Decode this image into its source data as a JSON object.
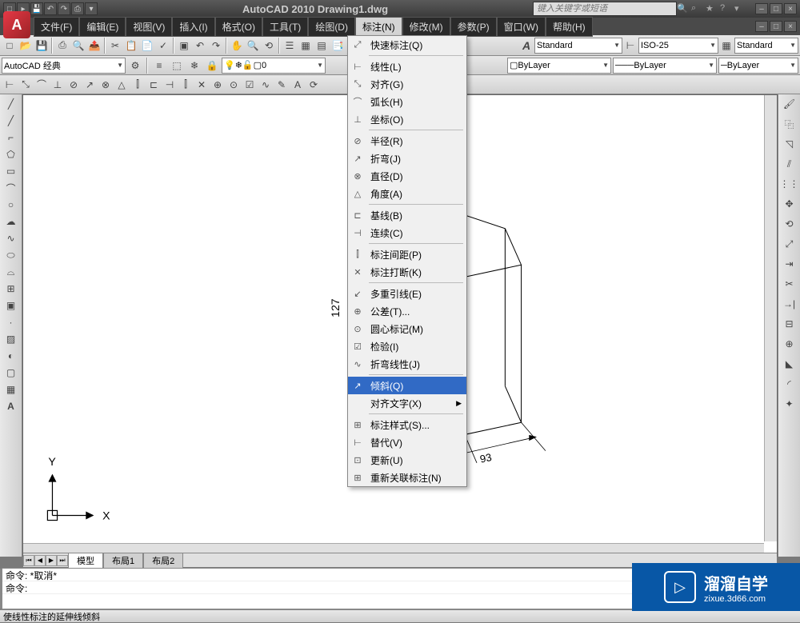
{
  "title": "AutoCAD 2010  Drawing1.dwg",
  "search_placeholder": "键入关键字或短语",
  "menus": [
    "文件(F)",
    "编辑(E)",
    "视图(V)",
    "插入(I)",
    "格式(O)",
    "工具(T)",
    "绘图(D)",
    "标注(N)",
    "修改(M)",
    "参数(P)",
    "窗口(W)",
    "帮助(H)"
  ],
  "active_menu": 7,
  "workspace": "AutoCAD 经典",
  "layer": "0",
  "text_style": "Standard",
  "dim_style": "ISO-25",
  "table_style": "Standard",
  "bylayer1": "ByLayer",
  "bylayer2": "ByLayer",
  "bylayer3": "ByLayer",
  "dropdown_items": [
    {
      "icon": "⤢",
      "label": "快速标注(Q)",
      "sep": false
    },
    {
      "sep": true
    },
    {
      "icon": "⊢",
      "label": "线性(L)",
      "sep": false
    },
    {
      "icon": "⤡",
      "label": "对齐(G)",
      "sep": false
    },
    {
      "icon": "⌒",
      "label": "弧长(H)",
      "sep": false
    },
    {
      "icon": "⊥",
      "label": "坐标(O)",
      "sep": false
    },
    {
      "sep": true
    },
    {
      "icon": "⊘",
      "label": "半径(R)",
      "sep": false
    },
    {
      "icon": "↗",
      "label": "折弯(J)",
      "sep": false
    },
    {
      "icon": "⊗",
      "label": "直径(D)",
      "sep": false
    },
    {
      "icon": "△",
      "label": "角度(A)",
      "sep": false
    },
    {
      "sep": true
    },
    {
      "icon": "⊏",
      "label": "基线(B)",
      "sep": false
    },
    {
      "icon": "⊣",
      "label": "连续(C)",
      "sep": false
    },
    {
      "sep": true
    },
    {
      "icon": "⫿",
      "label": "标注间距(P)",
      "sep": false
    },
    {
      "icon": "✕",
      "label": "标注打断(K)",
      "sep": false
    },
    {
      "sep": true
    },
    {
      "icon": "↙",
      "label": "多重引线(E)",
      "sep": false
    },
    {
      "icon": "⊕",
      "label": "公差(T)...",
      "sep": false
    },
    {
      "icon": "⊙",
      "label": "圆心标记(M)",
      "sep": false
    },
    {
      "icon": "☑",
      "label": "检验(I)",
      "sep": false
    },
    {
      "icon": "∿",
      "label": "折弯线性(J)",
      "sep": false
    },
    {
      "sep": true
    },
    {
      "icon": "↗",
      "label": "倾斜(Q)",
      "sep": false,
      "highlight": true
    },
    {
      "icon": "",
      "label": "对齐文字(X)",
      "sep": false,
      "submenu": true
    },
    {
      "sep": true
    },
    {
      "icon": "⊞",
      "label": "标注样式(S)...",
      "sep": false
    },
    {
      "icon": "⊢",
      "label": "替代(V)",
      "sep": false
    },
    {
      "icon": "⊡",
      "label": "更新(U)",
      "sep": false
    },
    {
      "icon": "⊞",
      "label": "重新关联标注(N)",
      "sep": false
    }
  ],
  "tabs": [
    "模型",
    "布局1",
    "布局2"
  ],
  "active_tab": 0,
  "cmd_history": "命令: *取消*",
  "cmd_prompt": "命令:",
  "status_hint": "使线性标注的延伸线倾斜",
  "dimensions": {
    "height": "127",
    "w1": "",
    "w2": "93"
  },
  "ucs": {
    "x": "X",
    "y": "Y"
  },
  "watermark": {
    "cn": "溜溜自学",
    "url": "zixue.3d66.com"
  },
  "colors": {
    "titlebar_bg": "#4a4a4a",
    "menu_highlight": "#316ac5",
    "canvas_bg": "#ffffff",
    "watermark_bg": "#0857a6"
  }
}
